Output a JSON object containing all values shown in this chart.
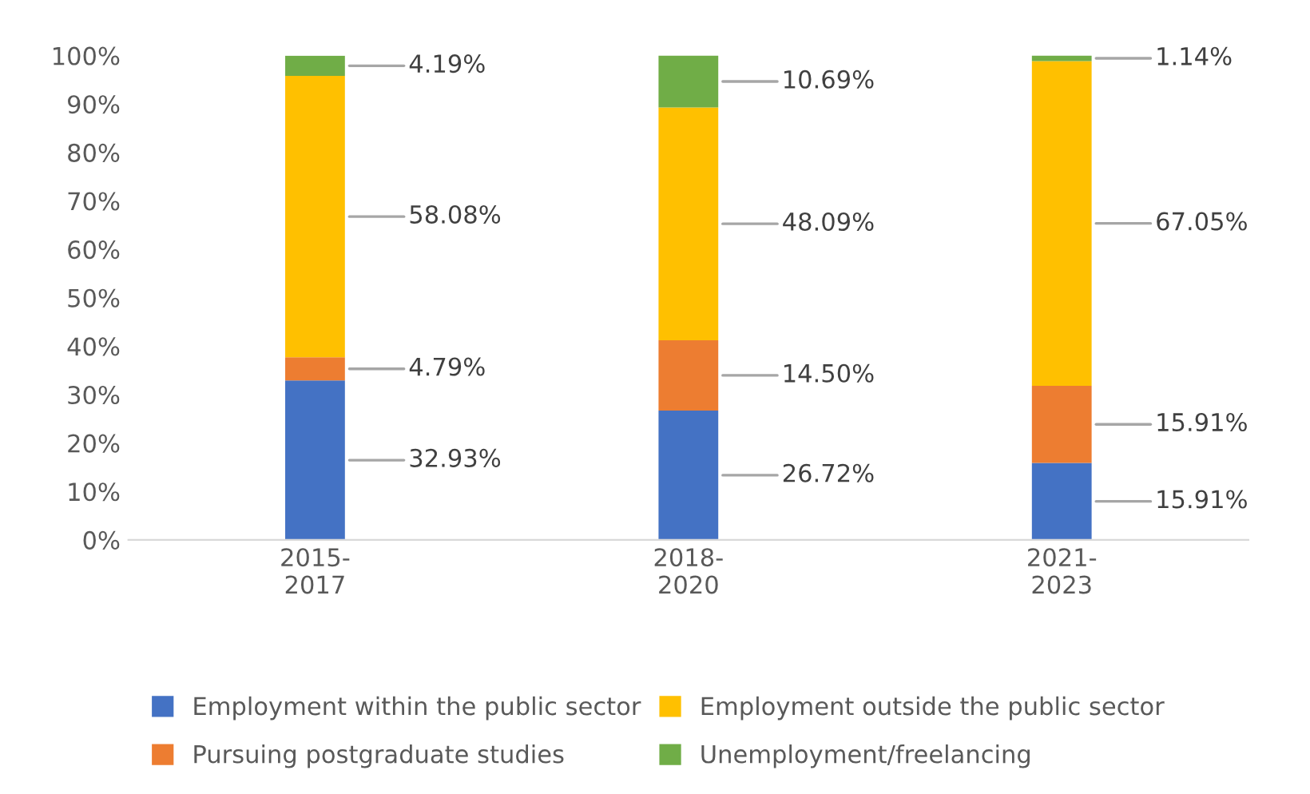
{
  "chart_data": {
    "type": "bar",
    "stacked": true,
    "categories": [
      "2015-\n2017",
      "2018-\n2020",
      "2021-\n2023"
    ],
    "series": [
      {
        "name": "Employment within the public sector",
        "color": "#4472c4",
        "values": [
          32.93,
          26.72,
          15.91
        ],
        "value_labels": [
          "32.93%",
          "26.72%",
          "15.91%"
        ]
      },
      {
        "name": "Pursuing postgraduate studies",
        "color": "#ed7d31",
        "values": [
          4.79,
          14.5,
          15.91
        ],
        "value_labels": [
          "4.79%",
          "14.50%",
          "15.91%"
        ]
      },
      {
        "name": "Employment outside the public sector",
        "color": "#ffc000",
        "values": [
          58.08,
          48.09,
          67.05
        ],
        "value_labels": [
          "58.08%",
          "48.09%",
          "67.05%"
        ]
      },
      {
        "name": "Unemployment/freelancing",
        "color": "#70ad47",
        "values": [
          4.19,
          10.69,
          1.14
        ],
        "value_labels": [
          "4.19%",
          "10.69%",
          "1.14%"
        ]
      }
    ],
    "ylim": [
      0,
      100
    ],
    "yticks": [
      {
        "value": 0,
        "label": "0%"
      },
      {
        "value": 10,
        "label": "10%"
      },
      {
        "value": 20,
        "label": "20%"
      },
      {
        "value": 30,
        "label": "30%"
      },
      {
        "value": 40,
        "label": "40%"
      },
      {
        "value": 50,
        "label": "50%"
      },
      {
        "value": 60,
        "label": "60%"
      },
      {
        "value": 70,
        "label": "70%"
      },
      {
        "value": 80,
        "label": "80%"
      },
      {
        "value": 90,
        "label": "90%"
      },
      {
        "value": 100,
        "label": "100%"
      }
    ],
    "grid": false,
    "legend": "bottom"
  }
}
